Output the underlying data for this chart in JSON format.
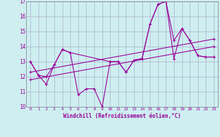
{
  "xlabel": "Windchill (Refroidissement éolien,°C)",
  "background_color": "#ceeef0",
  "grid_color": "#aab0cc",
  "line_color": "#990099",
  "xlim": [
    -0.5,
    23.5
  ],
  "ylim": [
    10,
    17
  ],
  "xticks": [
    0,
    1,
    2,
    3,
    4,
    5,
    6,
    7,
    8,
    9,
    10,
    11,
    12,
    13,
    14,
    15,
    16,
    17,
    18,
    19,
    20,
    21,
    22,
    23
  ],
  "yticks": [
    10,
    11,
    12,
    13,
    14,
    15,
    16,
    17
  ],
  "series": [
    {
      "x": [
        0,
        1,
        2,
        3,
        4,
        5,
        6,
        7,
        8,
        9,
        10,
        11,
        12,
        13,
        14,
        15,
        16,
        17,
        18,
        19,
        20,
        21,
        22,
        23
      ],
      "y": [
        13.0,
        12.1,
        11.5,
        12.8,
        13.8,
        13.6,
        10.8,
        11.2,
        11.2,
        10.0,
        13.0,
        13.0,
        12.3,
        13.1,
        13.2,
        15.5,
        16.8,
        17.0,
        13.2,
        15.2,
        14.4,
        13.4,
        13.3,
        13.3
      ]
    },
    {
      "x": [
        0,
        1,
        2,
        3,
        4,
        5,
        10,
        11,
        12,
        13,
        14,
        15,
        16,
        17,
        18,
        19,
        20,
        21,
        22,
        23
      ],
      "y": [
        13.0,
        12.1,
        12.0,
        12.8,
        13.8,
        13.6,
        13.0,
        13.0,
        12.3,
        13.1,
        13.2,
        15.5,
        16.8,
        17.0,
        14.4,
        15.2,
        14.4,
        13.4,
        13.3,
        13.3
      ]
    },
    {
      "x": [
        0,
        23
      ],
      "y": [
        11.8,
        14.0
      ]
    },
    {
      "x": [
        0,
        23
      ],
      "y": [
        12.3,
        14.5
      ]
    }
  ]
}
